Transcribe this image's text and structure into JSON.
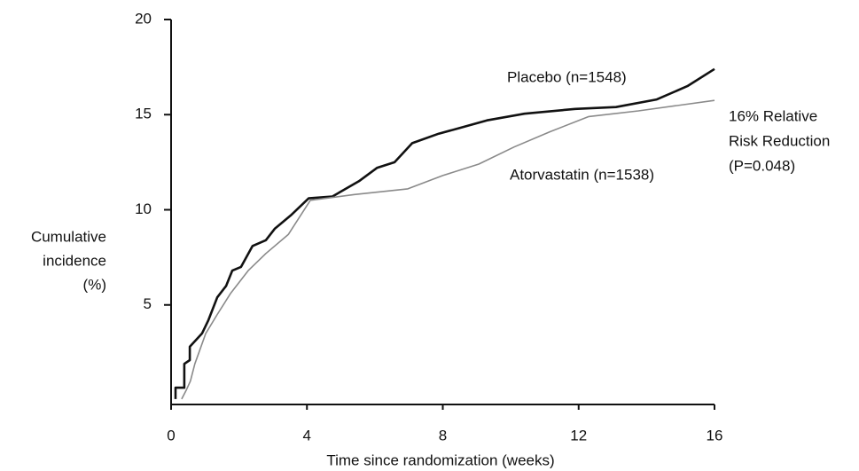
{
  "chart_data": {
    "type": "line",
    "x_label": "Time since randomization (weeks)",
    "y_label": [
      "Cumulative",
      "incidence",
      "(%)"
    ],
    "annotation": [
      "16% Relative",
      "Risk Reduction",
      "(P=0.048)"
    ],
    "xlim": [
      0,
      16
    ],
    "ylim": [
      0,
      20
    ],
    "xticks": [
      0,
      4,
      8,
      12,
      16
    ],
    "yticks": [
      5,
      10,
      15,
      20
    ],
    "series": [
      {
        "name": "Placebo (n=1548)",
        "color": "#111111",
        "x": [
          0.13,
          0.13,
          0.39,
          0.39,
          0.55,
          0.55,
          0.91,
          1.1,
          1.36,
          1.62,
          1.8,
          2.06,
          2.4,
          2.79,
          3.05,
          3.52,
          4.05,
          4.75,
          5.53,
          6.06,
          6.58,
          7.1,
          7.88,
          8.5,
          9.3,
          10.4,
          11.9,
          13.1,
          14.3,
          15.2,
          16.0
        ],
        "values": [
          0.05,
          0.65,
          0.65,
          1.9,
          2.1,
          2.8,
          3.5,
          4.2,
          5.4,
          6.0,
          6.8,
          7.0,
          8.1,
          8.4,
          9.0,
          9.7,
          10.6,
          10.7,
          11.5,
          12.2,
          12.5,
          13.5,
          14.0,
          14.3,
          14.7,
          15.05,
          15.3,
          15.4,
          15.8,
          16.5,
          17.4
        ]
      },
      {
        "name": "Atorvastatin (n=1538)",
        "color": "#8a8a8a",
        "x": [
          0.31,
          0.44,
          0.57,
          0.7,
          0.84,
          1.02,
          1.36,
          1.75,
          2.27,
          2.79,
          3.45,
          4.1,
          5.4,
          6.97,
          8.0,
          9.06,
          10.1,
          11.15,
          12.3,
          13.76,
          16.0
        ],
        "values": [
          0.05,
          0.5,
          1.0,
          1.9,
          2.6,
          3.5,
          4.5,
          5.6,
          6.8,
          7.7,
          8.7,
          10.5,
          10.8,
          11.1,
          11.8,
          12.4,
          13.3,
          14.1,
          14.9,
          15.2,
          15.75
        ]
      }
    ]
  }
}
